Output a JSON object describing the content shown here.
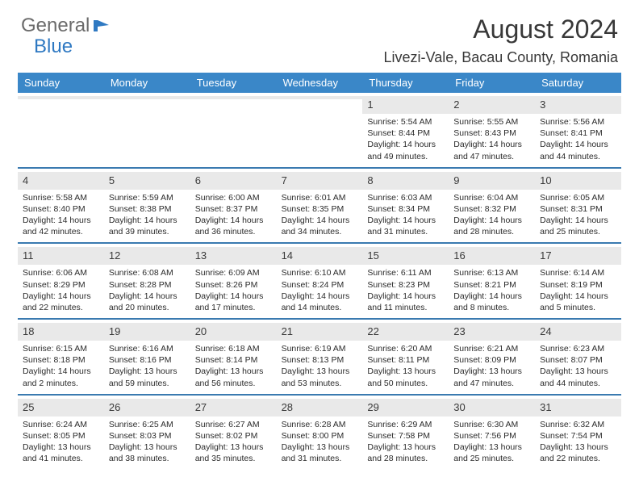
{
  "brand": {
    "part1": "General",
    "part2": "Blue"
  },
  "title": "August 2024",
  "location": "Livezi-Vale, Bacau County, Romania",
  "colors": {
    "header_bg": "#3a87c8",
    "border": "#3a7ab0",
    "daynum_bg": "#e9e9e9",
    "text": "#2b2b2b",
    "brand_gray": "#6b6b6b",
    "brand_blue": "#2f79c2"
  },
  "weekdays": [
    "Sunday",
    "Monday",
    "Tuesday",
    "Wednesday",
    "Thursday",
    "Friday",
    "Saturday"
  ],
  "weeks": [
    [
      {
        "empty": true
      },
      {
        "empty": true
      },
      {
        "empty": true
      },
      {
        "empty": true
      },
      {
        "num": "1",
        "sunrise": "Sunrise: 5:54 AM",
        "sunset": "Sunset: 8:44 PM",
        "daylight": "Daylight: 14 hours and 49 minutes."
      },
      {
        "num": "2",
        "sunrise": "Sunrise: 5:55 AM",
        "sunset": "Sunset: 8:43 PM",
        "daylight": "Daylight: 14 hours and 47 minutes."
      },
      {
        "num": "3",
        "sunrise": "Sunrise: 5:56 AM",
        "sunset": "Sunset: 8:41 PM",
        "daylight": "Daylight: 14 hours and 44 minutes."
      }
    ],
    [
      {
        "num": "4",
        "sunrise": "Sunrise: 5:58 AM",
        "sunset": "Sunset: 8:40 PM",
        "daylight": "Daylight: 14 hours and 42 minutes."
      },
      {
        "num": "5",
        "sunrise": "Sunrise: 5:59 AM",
        "sunset": "Sunset: 8:38 PM",
        "daylight": "Daylight: 14 hours and 39 minutes."
      },
      {
        "num": "6",
        "sunrise": "Sunrise: 6:00 AM",
        "sunset": "Sunset: 8:37 PM",
        "daylight": "Daylight: 14 hours and 36 minutes."
      },
      {
        "num": "7",
        "sunrise": "Sunrise: 6:01 AM",
        "sunset": "Sunset: 8:35 PM",
        "daylight": "Daylight: 14 hours and 34 minutes."
      },
      {
        "num": "8",
        "sunrise": "Sunrise: 6:03 AM",
        "sunset": "Sunset: 8:34 PM",
        "daylight": "Daylight: 14 hours and 31 minutes."
      },
      {
        "num": "9",
        "sunrise": "Sunrise: 6:04 AM",
        "sunset": "Sunset: 8:32 PM",
        "daylight": "Daylight: 14 hours and 28 minutes."
      },
      {
        "num": "10",
        "sunrise": "Sunrise: 6:05 AM",
        "sunset": "Sunset: 8:31 PM",
        "daylight": "Daylight: 14 hours and 25 minutes."
      }
    ],
    [
      {
        "num": "11",
        "sunrise": "Sunrise: 6:06 AM",
        "sunset": "Sunset: 8:29 PM",
        "daylight": "Daylight: 14 hours and 22 minutes."
      },
      {
        "num": "12",
        "sunrise": "Sunrise: 6:08 AM",
        "sunset": "Sunset: 8:28 PM",
        "daylight": "Daylight: 14 hours and 20 minutes."
      },
      {
        "num": "13",
        "sunrise": "Sunrise: 6:09 AM",
        "sunset": "Sunset: 8:26 PM",
        "daylight": "Daylight: 14 hours and 17 minutes."
      },
      {
        "num": "14",
        "sunrise": "Sunrise: 6:10 AM",
        "sunset": "Sunset: 8:24 PM",
        "daylight": "Daylight: 14 hours and 14 minutes."
      },
      {
        "num": "15",
        "sunrise": "Sunrise: 6:11 AM",
        "sunset": "Sunset: 8:23 PM",
        "daylight": "Daylight: 14 hours and 11 minutes."
      },
      {
        "num": "16",
        "sunrise": "Sunrise: 6:13 AM",
        "sunset": "Sunset: 8:21 PM",
        "daylight": "Daylight: 14 hours and 8 minutes."
      },
      {
        "num": "17",
        "sunrise": "Sunrise: 6:14 AM",
        "sunset": "Sunset: 8:19 PM",
        "daylight": "Daylight: 14 hours and 5 minutes."
      }
    ],
    [
      {
        "num": "18",
        "sunrise": "Sunrise: 6:15 AM",
        "sunset": "Sunset: 8:18 PM",
        "daylight": "Daylight: 14 hours and 2 minutes."
      },
      {
        "num": "19",
        "sunrise": "Sunrise: 6:16 AM",
        "sunset": "Sunset: 8:16 PM",
        "daylight": "Daylight: 13 hours and 59 minutes."
      },
      {
        "num": "20",
        "sunrise": "Sunrise: 6:18 AM",
        "sunset": "Sunset: 8:14 PM",
        "daylight": "Daylight: 13 hours and 56 minutes."
      },
      {
        "num": "21",
        "sunrise": "Sunrise: 6:19 AM",
        "sunset": "Sunset: 8:13 PM",
        "daylight": "Daylight: 13 hours and 53 minutes."
      },
      {
        "num": "22",
        "sunrise": "Sunrise: 6:20 AM",
        "sunset": "Sunset: 8:11 PM",
        "daylight": "Daylight: 13 hours and 50 minutes."
      },
      {
        "num": "23",
        "sunrise": "Sunrise: 6:21 AM",
        "sunset": "Sunset: 8:09 PM",
        "daylight": "Daylight: 13 hours and 47 minutes."
      },
      {
        "num": "24",
        "sunrise": "Sunrise: 6:23 AM",
        "sunset": "Sunset: 8:07 PM",
        "daylight": "Daylight: 13 hours and 44 minutes."
      }
    ],
    [
      {
        "num": "25",
        "sunrise": "Sunrise: 6:24 AM",
        "sunset": "Sunset: 8:05 PM",
        "daylight": "Daylight: 13 hours and 41 minutes."
      },
      {
        "num": "26",
        "sunrise": "Sunrise: 6:25 AM",
        "sunset": "Sunset: 8:03 PM",
        "daylight": "Daylight: 13 hours and 38 minutes."
      },
      {
        "num": "27",
        "sunrise": "Sunrise: 6:27 AM",
        "sunset": "Sunset: 8:02 PM",
        "daylight": "Daylight: 13 hours and 35 minutes."
      },
      {
        "num": "28",
        "sunrise": "Sunrise: 6:28 AM",
        "sunset": "Sunset: 8:00 PM",
        "daylight": "Daylight: 13 hours and 31 minutes."
      },
      {
        "num": "29",
        "sunrise": "Sunrise: 6:29 AM",
        "sunset": "Sunset: 7:58 PM",
        "daylight": "Daylight: 13 hours and 28 minutes."
      },
      {
        "num": "30",
        "sunrise": "Sunrise: 6:30 AM",
        "sunset": "Sunset: 7:56 PM",
        "daylight": "Daylight: 13 hours and 25 minutes."
      },
      {
        "num": "31",
        "sunrise": "Sunrise: 6:32 AM",
        "sunset": "Sunset: 7:54 PM",
        "daylight": "Daylight: 13 hours and 22 minutes."
      }
    ]
  ]
}
